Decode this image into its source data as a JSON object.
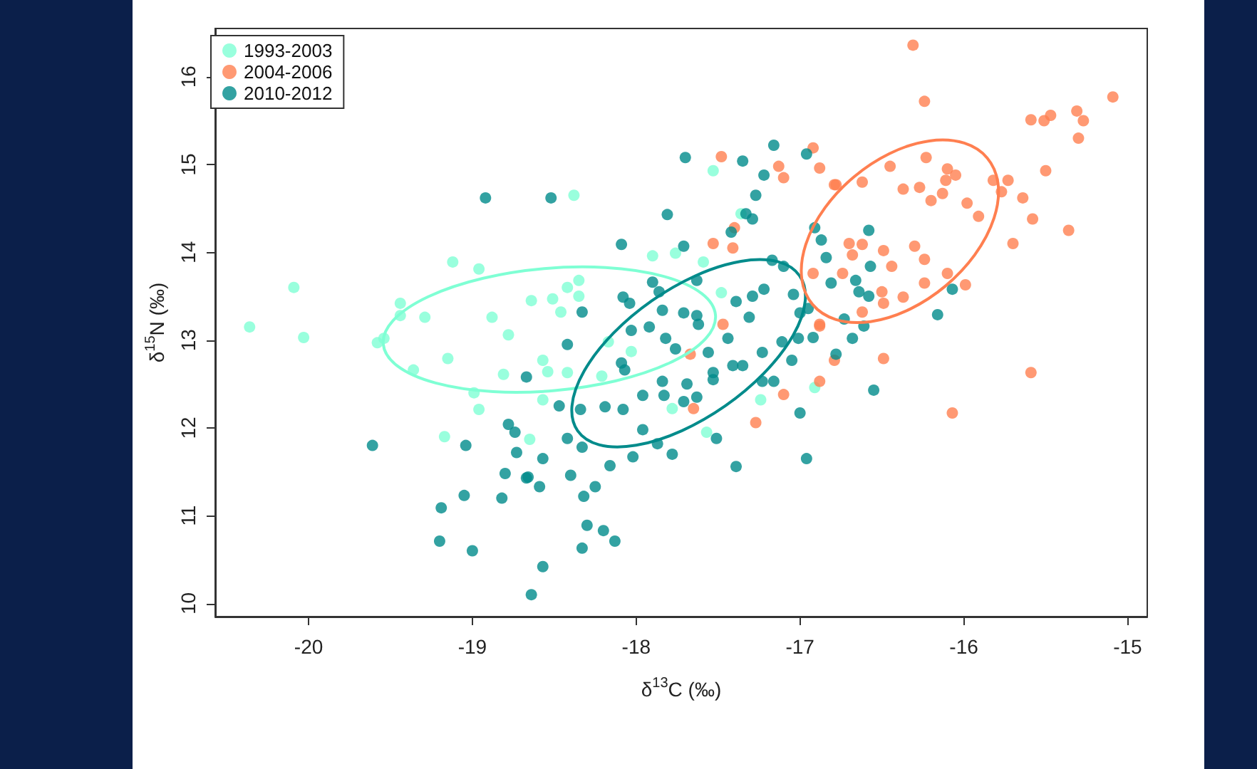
{
  "chart_data": {
    "type": "scatter",
    "xlabel": "δ$^{13}$C (‰)",
    "ylabel": "δ$^{15}$N (‰)",
    "xlim": [
      -20.57,
      -14.88
    ],
    "ylim": [
      9.85,
      16.55
    ],
    "xticks": [
      -20,
      -19,
      -18,
      -17,
      -16,
      -15
    ],
    "yticks": [
      10,
      11,
      12,
      13,
      14,
      15,
      16
    ],
    "grid": false,
    "legend": "top left",
    "marker": "circle",
    "series": [
      {
        "name": "1993-2003",
        "color": "#7fffd4",
        "x": [
          -20.36,
          -20.09,
          -20.03,
          -19.58,
          -19.54,
          -19.36,
          -19.15,
          -18.99,
          -18.96,
          -19.17,
          -18.81,
          -18.78,
          -18.65,
          -19.12,
          -18.96,
          -19.44,
          -19.44,
          -19.29,
          -18.88,
          -18.64,
          -18.38,
          -17.53,
          -17.9,
          -17.76,
          -17.59,
          -18.42,
          -18.35,
          -18.51,
          -18.46,
          -18.35,
          -17.48,
          -17.36,
          -18.57,
          -18.54,
          -18.42,
          -18.17,
          -18.03,
          -18.21,
          -18.57,
          -17.78,
          -17.57,
          -17.24,
          -16.91
        ],
        "values": [
          13.15,
          13.6,
          13.03,
          12.97,
          13.02,
          12.66,
          12.79,
          12.4,
          12.21,
          11.9,
          12.61,
          13.06,
          11.87,
          13.89,
          13.81,
          13.42,
          13.28,
          13.26,
          13.26,
          13.45,
          14.65,
          14.93,
          13.96,
          13.99,
          13.89,
          13.6,
          13.68,
          13.47,
          13.32,
          13.5,
          13.54,
          14.44,
          12.77,
          12.64,
          12.63,
          12.98,
          12.87,
          12.59,
          12.32,
          12.22,
          11.95,
          12.32,
          12.46
        ]
      },
      {
        "name": "2004-2006",
        "color": "#ff7f50",
        "x": [
          -17.48,
          -17.13,
          -17.1,
          -16.92,
          -16.88,
          -16.78,
          -17.4,
          -17.53,
          -17.41,
          -16.92,
          -16.88,
          -16.31,
          -16.24,
          -15.09,
          -15.59,
          -15.51,
          -15.47,
          -15.31,
          -15.27,
          -15.3,
          -15.5,
          -16.23,
          -16.45,
          -16.1,
          -16.05,
          -16.11,
          -15.82,
          -15.73,
          -16.79,
          -16.62,
          -16.37,
          -16.27,
          -16.13,
          -15.77,
          -16.2,
          -15.98,
          -15.64,
          -15.91,
          -15.58,
          -15.36,
          -15.7,
          -16.7,
          -16.62,
          -16.49,
          -16.3,
          -16.68,
          -16.24,
          -16.44,
          -16.74,
          -16.1,
          -15.99,
          -16.24,
          -16.5,
          -16.37,
          -16.49,
          -16.62,
          -16.49,
          -15.59,
          -16.07,
          -16.79,
          -17.65,
          -17.27,
          -17.1,
          -16.88,
          -16.88,
          -17.47,
          -17.67
        ],
        "values": [
          15.09,
          14.98,
          14.85,
          15.19,
          14.96,
          14.77,
          14.28,
          14.1,
          14.05,
          13.76,
          13.16,
          16.36,
          15.72,
          15.77,
          15.51,
          15.5,
          15.56,
          15.61,
          15.5,
          15.3,
          14.93,
          15.08,
          14.98,
          14.95,
          14.88,
          14.82,
          14.82,
          14.82,
          14.77,
          14.8,
          14.72,
          14.74,
          14.67,
          14.69,
          14.59,
          14.56,
          14.62,
          14.41,
          14.38,
          14.25,
          14.1,
          14.1,
          14.09,
          14.02,
          14.07,
          13.97,
          13.92,
          13.84,
          13.76,
          13.76,
          13.63,
          13.65,
          13.55,
          13.49,
          13.42,
          13.32,
          12.79,
          12.63,
          12.17,
          12.77,
          12.22,
          12.06,
          12.38,
          12.53,
          13.18,
          13.18,
          12.84
        ]
      },
      {
        "name": "2010-2012",
        "color": "#008b8b",
        "x": [
          -18.92,
          -18.52,
          -17.7,
          -17.35,
          -17.16,
          -16.96,
          -17.22,
          -17.27,
          -17.81,
          -17.33,
          -17.29,
          -18.09,
          -17.42,
          -17.71,
          -17.17,
          -17.1,
          -16.91,
          -16.87,
          -16.84,
          -16.81,
          -17.9,
          -17.86,
          -18.08,
          -18.04,
          -18.33,
          -17.63,
          -17.84,
          -17.71,
          -17.63,
          -17.39,
          -17.29,
          -17.22,
          -17.31,
          -17.04,
          -17.0,
          -16.95,
          -16.58,
          -16.57,
          -16.66,
          -16.64,
          -16.58,
          -16.07,
          -16.16,
          -16.61,
          -16.73,
          -16.68,
          -16.78,
          -16.55,
          -18.67,
          -18.78,
          -18.74,
          -18.73,
          -19.61,
          -19.04,
          -18.8,
          -18.67,
          -19.05,
          -18.82,
          -19.19,
          -19.2,
          -19.0,
          -18.64,
          -18.42,
          -18.47,
          -18.34,
          -18.19,
          -18.08,
          -18.42,
          -18.57,
          -18.33,
          -18.16,
          -18.02,
          -18.66,
          -18.59,
          -18.4,
          -18.25,
          -18.32,
          -18.3,
          -18.2,
          -18.13,
          -18.33,
          -18.57,
          -17.96,
          -17.87,
          -17.78,
          -17.39,
          -16.96,
          -17.0,
          -17.51,
          -17.96,
          -17.83,
          -17.71,
          -17.63,
          -17.69,
          -17.84,
          -17.53,
          -17.41,
          -17.35,
          -17.53,
          -17.23,
          -17.16,
          -17.05,
          -17.44,
          -17.56,
          -17.23,
          -17.76,
          -17.82,
          -18.09,
          -18.07,
          -18.03,
          -17.92,
          -17.62,
          -17.11,
          -17.01,
          -16.92
        ],
        "values": [
          14.62,
          14.62,
          15.08,
          15.04,
          15.22,
          15.12,
          14.88,
          14.65,
          14.43,
          14.44,
          14.38,
          14.09,
          14.23,
          14.07,
          13.91,
          13.84,
          14.28,
          14.14,
          13.94,
          13.65,
          13.66,
          13.55,
          13.49,
          13.42,
          13.32,
          13.68,
          13.34,
          13.31,
          13.28,
          13.44,
          13.5,
          13.58,
          13.26,
          13.52,
          13.31,
          13.36,
          14.25,
          13.84,
          13.68,
          13.55,
          13.5,
          13.58,
          13.29,
          13.16,
          13.24,
          13.02,
          12.84,
          12.43,
          12.58,
          12.04,
          11.95,
          11.72,
          11.8,
          11.8,
          11.48,
          11.43,
          11.23,
          11.2,
          11.09,
          10.71,
          10.6,
          10.1,
          12.95,
          12.25,
          12.21,
          12.24,
          12.21,
          11.88,
          11.65,
          11.78,
          11.57,
          11.67,
          11.44,
          11.33,
          11.46,
          11.33,
          11.22,
          10.89,
          10.83,
          10.71,
          10.63,
          10.42,
          11.98,
          11.82,
          11.7,
          11.56,
          11.65,
          12.17,
          11.88,
          12.37,
          12.37,
          12.3,
          12.35,
          12.5,
          12.53,
          12.63,
          12.71,
          12.71,
          12.55,
          12.53,
          12.53,
          12.77,
          13.02,
          12.86,
          12.86,
          12.9,
          13.02,
          12.74,
          12.66,
          13.11,
          13.15,
          13.18,
          12.98,
          13.02,
          13.03
        ]
      }
    ]
  }
}
